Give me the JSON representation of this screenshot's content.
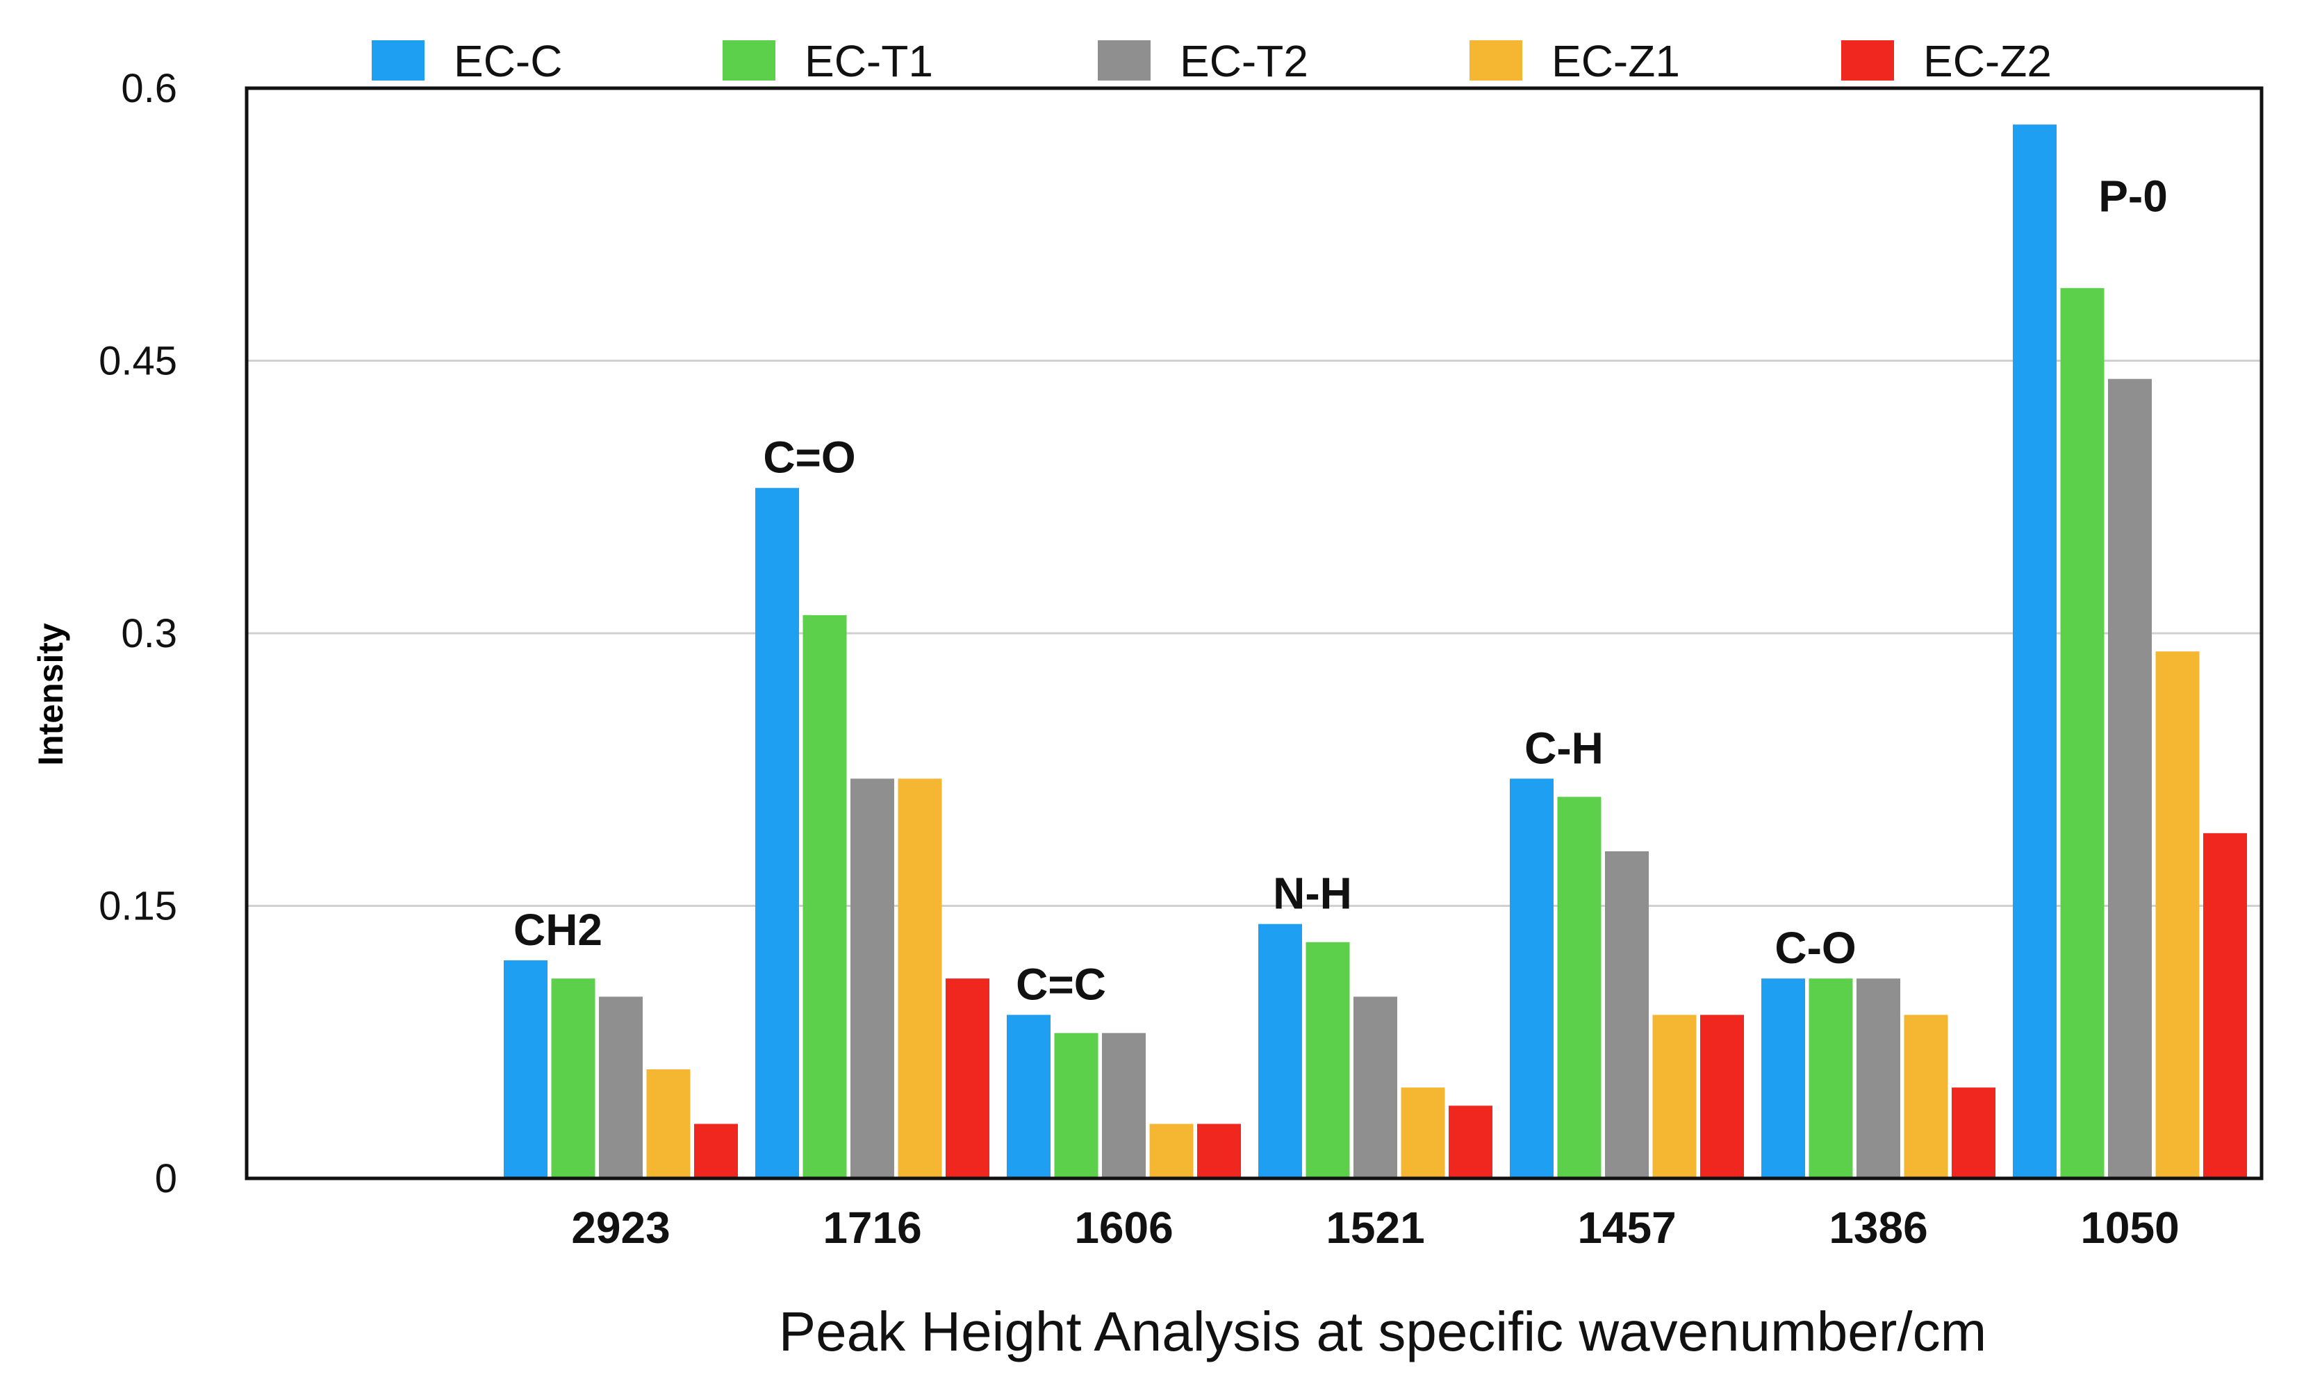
{
  "chart_data": {
    "type": "bar",
    "title": "",
    "xlabel": "Peak Height Analysis at specific wavenumber/cm",
    "ylabel": "Intensity",
    "ylim": [
      0,
      0.6
    ],
    "yticks": [
      "0",
      "0.15",
      "0.3",
      "0.45",
      "0.6"
    ],
    "ytick_values": [
      0,
      0.15,
      0.3,
      0.45,
      0.6
    ],
    "grid": true,
    "legend_position": "top",
    "categories": [
      "2923",
      "1716",
      "1606",
      "1521",
      "1457",
      "1386",
      "1050"
    ],
    "annotations": [
      "CH2",
      "C=O",
      "C=C",
      "N-H",
      "C-H",
      "C-O",
      "P-0"
    ],
    "series": [
      {
        "name": "EC-C",
        "color": "#1e9ff2",
        "values": [
          0.12,
          0.38,
          0.09,
          0.14,
          0.22,
          0.11,
          0.58
        ]
      },
      {
        "name": "EC-T1",
        "color": "#5cd04a",
        "values": [
          0.11,
          0.31,
          0.08,
          0.13,
          0.21,
          0.11,
          0.49
        ]
      },
      {
        "name": "EC-T2",
        "color": "#8f8f8f",
        "values": [
          0.1,
          0.22,
          0.08,
          0.1,
          0.18,
          0.11,
          0.44
        ]
      },
      {
        "name": "EC-Z1",
        "color": "#f5b731",
        "values": [
          0.06,
          0.22,
          0.03,
          0.05,
          0.09,
          0.09,
          0.29
        ]
      },
      {
        "name": "EC-Z2",
        "color": "#f0271f",
        "values": [
          0.03,
          0.11,
          0.03,
          0.04,
          0.09,
          0.05,
          0.19
        ]
      }
    ]
  }
}
